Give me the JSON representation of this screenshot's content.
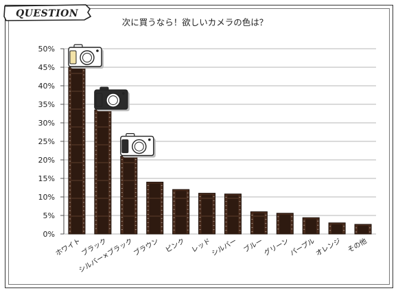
{
  "badge": {
    "label": "QUESTION"
  },
  "chart_data": {
    "type": "bar",
    "title": "次に買うなら！欲しいカメラの色は？",
    "categories": [
      "ホワイト",
      "ブラック",
      "シルバー×ブラック",
      "ブラウン",
      "ピンク",
      "レッド",
      "シルバー",
      "ブルー",
      "グリーン",
      "パープル",
      "オレンジ",
      "その他"
    ],
    "values": [
      45,
      33.5,
      21,
      14,
      12,
      11,
      10.8,
      6,
      5.6,
      4.4,
      3,
      2.6
    ],
    "ylim": [
      0,
      50
    ],
    "yticks": [
      "0%",
      "5%",
      "10%",
      "15%",
      "20%",
      "25%",
      "30%",
      "35%",
      "40%",
      "45%",
      "50%"
    ],
    "xlabel": "",
    "ylabel": "",
    "grid": true,
    "bar_style": "film-strip",
    "bar_color": "#4a2c1d",
    "camera_icons": [
      {
        "category": "ホワイト",
        "body_color": "#ffffff",
        "accent_color": "#f3e3a8"
      },
      {
        "category": "ブラック",
        "body_color": "#2b2b2b",
        "accent_color": "#2b2b2b"
      },
      {
        "category": "シルバー×ブラック",
        "body_color": "#ffffff",
        "accent_color": "#2b2b2b"
      }
    ]
  }
}
